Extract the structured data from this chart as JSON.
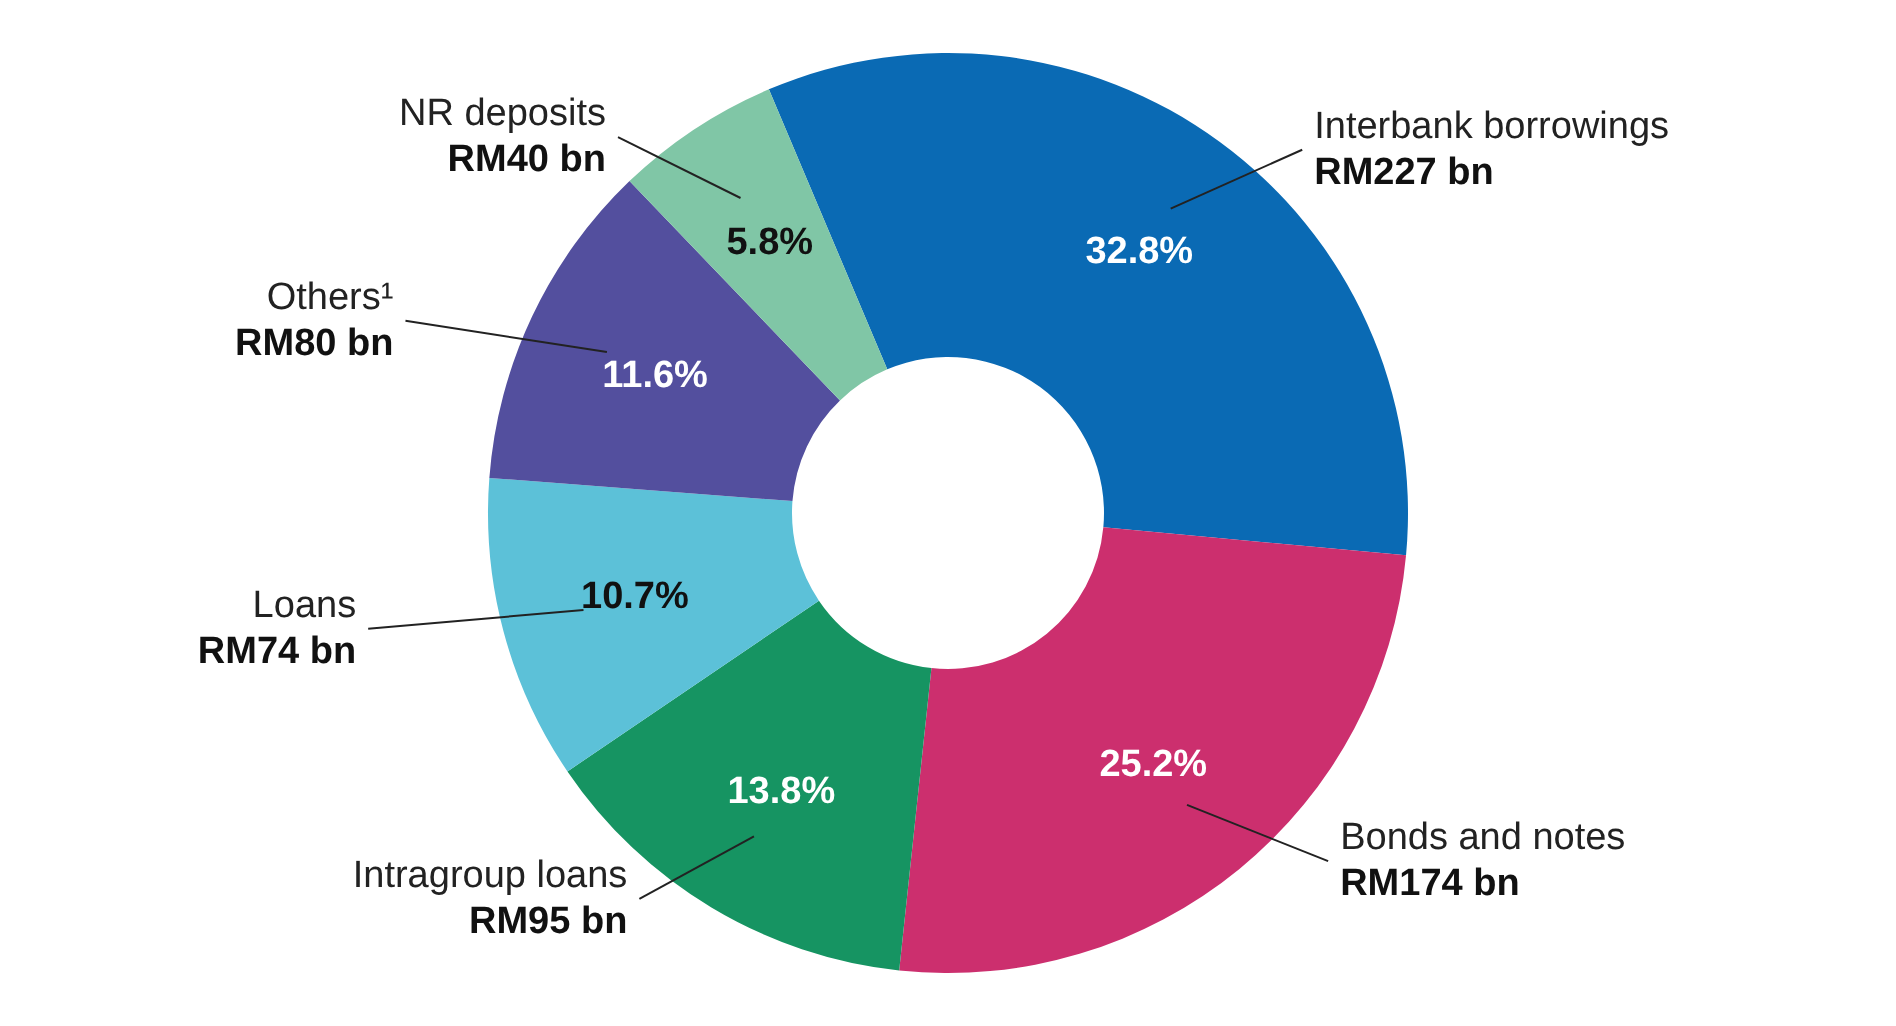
{
  "chart_data": {
    "type": "donut",
    "categories": [
      "Interbank borrowings",
      "Bonds and notes",
      "Intragroup loans",
      "Loans",
      "Others¹",
      "NR deposits"
    ],
    "values": [
      32.8,
      25.2,
      13.8,
      10.7,
      11.6,
      5.8
    ],
    "colors": [
      "#0a6ab4",
      "#cc2f6e",
      "#169462",
      "#5cc1d8",
      "#534f9e",
      "#80c6a6"
    ],
    "value_labels": [
      "32.8%",
      "25.2%",
      "13.8%",
      "10.7%",
      "11.6%",
      "5.8%"
    ],
    "annotations": [
      "RM227 bn",
      "RM174 bn",
      "RM95 bn",
      "RM74 bn",
      "RM80 bn",
      "RM40 bn"
    ]
  }
}
